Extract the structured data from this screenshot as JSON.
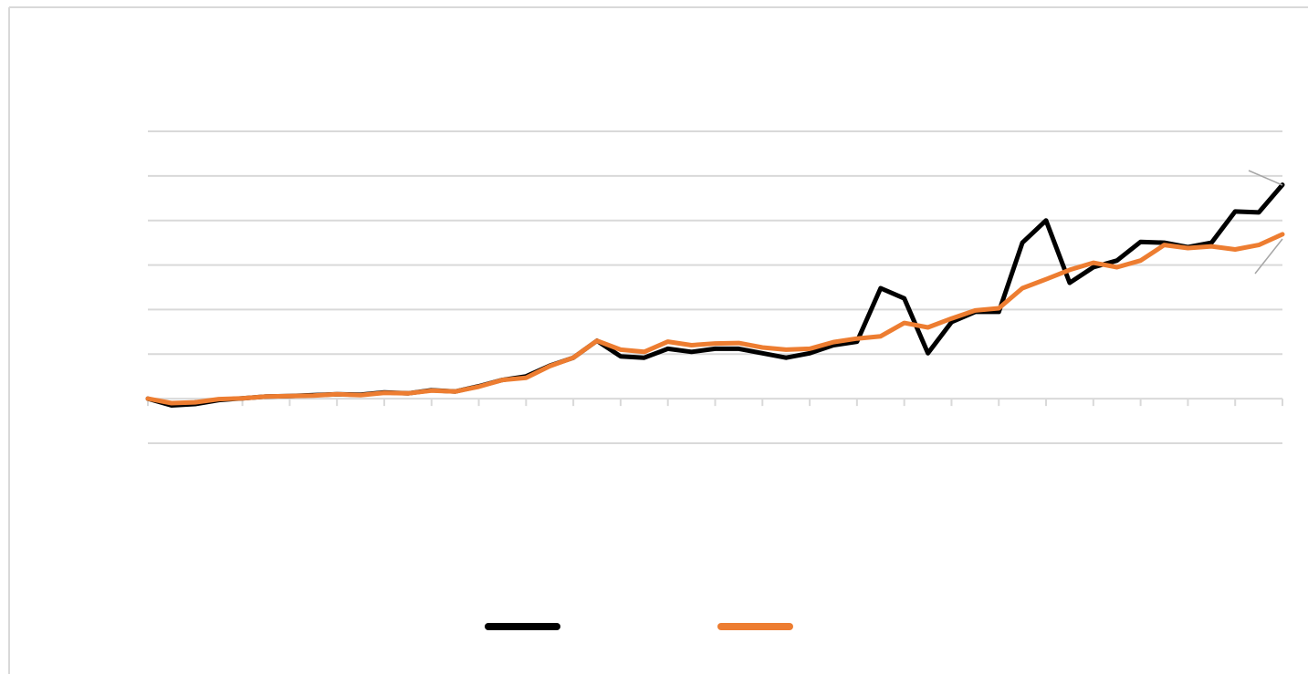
{
  "chart_data": {
    "type": "line",
    "x": [
      0,
      0.5,
      1,
      1.5,
      2,
      2.5,
      3,
      3.5,
      4,
      4.5,
      5,
      5.5,
      6,
      6.5,
      7,
      7.5,
      8,
      8.5,
      9,
      9.5,
      10,
      10.5,
      11,
      11.5,
      12,
      12.5,
      13,
      13.5,
      14,
      14.5,
      15,
      15.5,
      16,
      16.5,
      17,
      17.5,
      18,
      18.5,
      19,
      19.5,
      20,
      20.5,
      21,
      21.5,
      22,
      22.5,
      23,
      23.5,
      24
    ],
    "series": [
      {
        "color": "#000000",
        "values": [
          0,
          -0.15,
          -0.12,
          -0.03,
          0.01,
          0.05,
          0.06,
          0.08,
          0.1,
          0.09,
          0.14,
          0.12,
          0.19,
          0.16,
          0.28,
          0.42,
          0.5,
          0.74,
          0.92,
          1.3,
          0.95,
          0.92,
          1.12,
          1.05,
          1.12,
          1.12,
          1.02,
          0.92,
          1.02,
          1.2,
          1.28,
          2.48,
          2.25,
          1.02,
          1.72,
          1.95,
          1.95,
          3.5,
          4.0,
          2.6,
          2.95,
          3.1,
          3.52,
          3.5,
          3.4,
          3.5,
          4.2,
          4.18,
          4.8
        ]
      },
      {
        "color": "#ed7d31",
        "values": [
          0,
          -0.1,
          -0.08,
          -0.01,
          0.01,
          0.05,
          0.06,
          0.07,
          0.1,
          0.08,
          0.13,
          0.12,
          0.18,
          0.16,
          0.27,
          0.42,
          0.47,
          0.73,
          0.92,
          1.3,
          1.1,
          1.05,
          1.28,
          1.2,
          1.24,
          1.25,
          1.15,
          1.1,
          1.12,
          1.27,
          1.35,
          1.4,
          1.7,
          1.6,
          1.8,
          1.98,
          2.03,
          2.48,
          2.68,
          2.89,
          3.05,
          2.95,
          3.1,
          3.45,
          3.38,
          3.42,
          3.35,
          3.45,
          3.69
        ]
      }
    ],
    "xlim": [
      0,
      24
    ],
    "xticks": [
      0,
      1,
      2,
      3,
      4,
      5,
      6,
      7,
      8,
      9,
      10,
      11,
      12,
      13,
      14,
      15,
      16,
      17,
      18,
      19,
      20,
      21,
      22,
      23,
      24
    ],
    "ylim": [
      -1,
      6
    ],
    "yticks": [
      -1,
      0,
      1,
      2,
      3,
      4,
      5,
      6
    ],
    "grid": true
  }
}
